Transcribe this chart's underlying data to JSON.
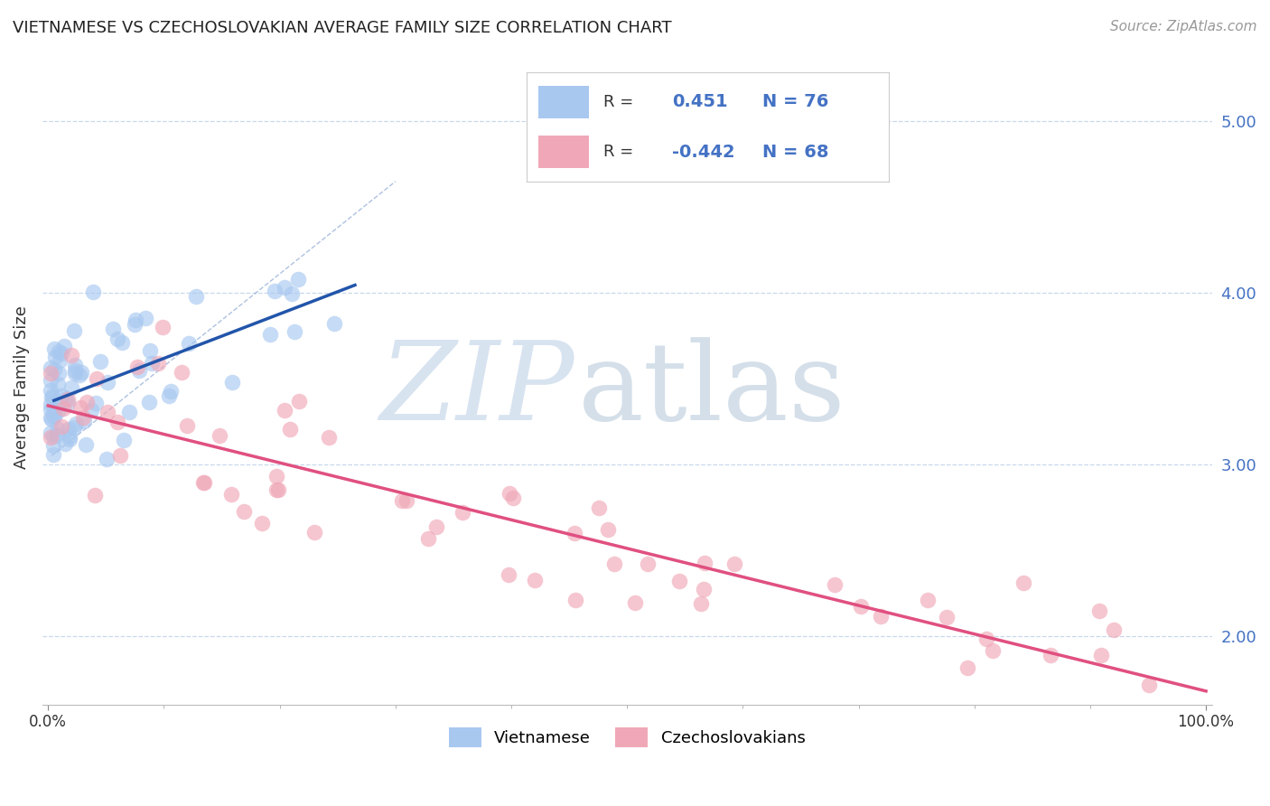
{
  "title": "VIETNAMESE VS CZECHOSLOVAKIAN AVERAGE FAMILY SIZE CORRELATION CHART",
  "source": "Source: ZipAtlas.com",
  "ylabel": "Average Family Size",
  "r_vietnamese": 0.451,
  "n_vietnamese": 76,
  "r_czechoslovakian": -0.442,
  "n_czechoslovakian": 68,
  "ylim_min": 1.6,
  "ylim_max": 5.3,
  "xlim_min": -0.005,
  "xlim_max": 1.005,
  "yticks": [
    2.0,
    3.0,
    4.0,
    5.0
  ],
  "color_vietnamese": "#a8c8f0",
  "color_czechoslovakian": "#f0a8b8",
  "color_trend_vietnamese": "#2255aa",
  "color_trend_czechoslovakian": "#e05080",
  "background_color": "#ffffff",
  "grid_color": "#c8d8ec",
  "watermark_zip_color": "#b8cce4",
  "watermark_atlas_color": "#a0b8d0"
}
